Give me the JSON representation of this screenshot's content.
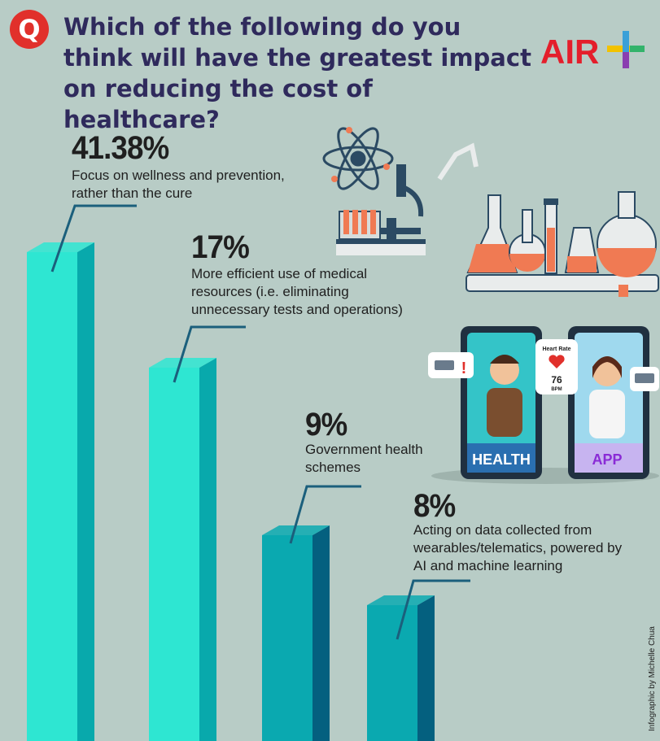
{
  "header": {
    "badge": "Q",
    "question": "Which of the following do you think will have the greatest impact on reducing the cost of healthcare?",
    "logo_text": "AIR"
  },
  "answers": [
    {
      "percent": "41.38%",
      "text": "Focus on wellness and prevention, rather than the cure"
    },
    {
      "percent": "17%",
      "text": "More efficient use of medical resources (i.e. eliminating unnecessary tests and operations)"
    },
    {
      "percent": "9%",
      "text": "Government health schemes"
    },
    {
      "percent": "8%",
      "text": "Acting on data collected from wearables/telematics, powered by AI and machine learning"
    }
  ],
  "illustration": {
    "heart_rate_label": "Heart Rate",
    "heart_rate_value": "76",
    "heart_rate_unit": "BPM",
    "phone_left_label": "HEALTH",
    "phone_right_label": "APP"
  },
  "credit": "Infographic by Michelle Chua",
  "colors": {
    "background": "#b8ccc6",
    "question_text": "#2f2a5c",
    "badge": "#e1302b",
    "bar_front_light": "#2ee6d2",
    "bar_side_light": "#08a9ac",
    "bar_front_dark": "#0aa9b0",
    "bar_side_dark": "#04607f",
    "leader_line": "#1b5f7c"
  },
  "chart_data": {
    "type": "bar",
    "categories": [
      "Focus on wellness and prevention, rather than the cure",
      "More efficient use of medical resources (i.e. eliminating unnecessary tests and operations)",
      "Government health schemes",
      "Acting on data collected from wearables/telematics, powered by AI and machine learning"
    ],
    "values": [
      41.38,
      17,
      9,
      8
    ],
    "title": "Which of the following do you think will have the greatest impact on reducing the cost of healthcare?",
    "xlabel": "",
    "ylabel": "",
    "grid": false,
    "legend": "none"
  }
}
